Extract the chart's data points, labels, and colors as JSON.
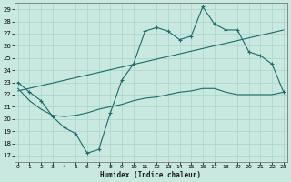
{
  "xlabel": "Humidex (Indice chaleur)",
  "x_ticks": [
    0,
    1,
    2,
    3,
    4,
    5,
    6,
    7,
    8,
    9,
    10,
    11,
    12,
    13,
    14,
    15,
    16,
    17,
    18,
    19,
    20,
    21,
    22,
    23
  ],
  "ylim_min": 17,
  "ylim_max": 29,
  "xlim_min": -0.3,
  "xlim_max": 23.3,
  "y_ticks": [
    17,
    18,
    19,
    20,
    21,
    22,
    23,
    24,
    25,
    26,
    27,
    28,
    29
  ],
  "bg_color": "#c8e8e0",
  "line_color": "#1a6b6b",
  "grid_color": "#b0d8d0",
  "series1_x": [
    0,
    1,
    2,
    3,
    4,
    5,
    6,
    7,
    8,
    9,
    10,
    11,
    12,
    13,
    14,
    15,
    16,
    17,
    18,
    19,
    20,
    21,
    22,
    23
  ],
  "series1_y": [
    23.0,
    22.2,
    21.5,
    20.2,
    19.3,
    18.8,
    17.2,
    17.5,
    20.5,
    23.2,
    24.5,
    27.2,
    27.5,
    27.2,
    26.5,
    26.8,
    29.2,
    27.8,
    27.3,
    27.3,
    25.5,
    25.2,
    24.5,
    22.2
  ],
  "series2_x": [
    0,
    1,
    2,
    3,
    4,
    5,
    6,
    7,
    8,
    9,
    10,
    11,
    12,
    13,
    14,
    15,
    16,
    17,
    18,
    19,
    20,
    21,
    22,
    23
  ],
  "series2_y": [
    22.5,
    21.5,
    20.8,
    20.3,
    20.2,
    20.3,
    20.5,
    20.8,
    21.0,
    21.2,
    21.5,
    21.7,
    21.8,
    22.0,
    22.2,
    22.3,
    22.5,
    22.5,
    22.2,
    22.0,
    22.0,
    22.0,
    22.0,
    22.2
  ],
  "series3_x": [
    0,
    23
  ],
  "series3_y": [
    22.3,
    27.3
  ]
}
